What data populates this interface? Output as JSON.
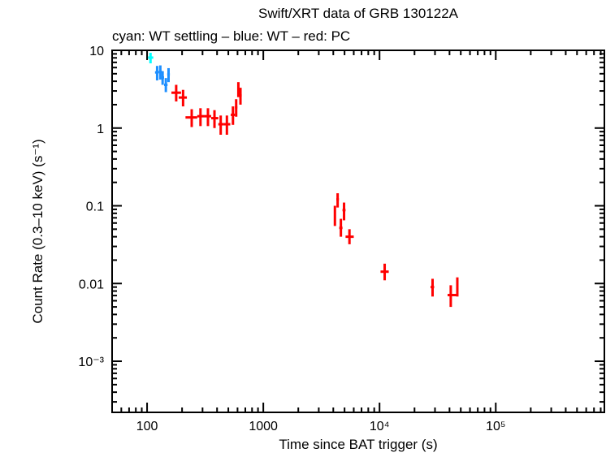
{
  "chart_data": {
    "type": "scatter",
    "title": "Swift/XRT data of GRB 130122A",
    "subtitle": "cyan: WT settling – blue: WT – red: PC",
    "xlabel": "Time since BAT trigger (s)",
    "ylabel": "Count Rate (0.3–10 keV) (s⁻¹)",
    "xscale": "log",
    "yscale": "log",
    "xlim": [
      50,
      860000
    ],
    "ylim": [
      0.00022,
      10
    ],
    "grid": false,
    "x_ticks": [
      {
        "value": 100,
        "label": "100"
      },
      {
        "value": 1000,
        "label": "1000"
      },
      {
        "value": 10000,
        "label": "10⁴"
      },
      {
        "value": 100000,
        "label": "10⁵"
      }
    ],
    "y_ticks": [
      {
        "value": 10,
        "label": "10"
      },
      {
        "value": 1,
        "label": "1"
      },
      {
        "value": 0.1,
        "label": "0.1"
      },
      {
        "value": 0.01,
        "label": "0.01"
      },
      {
        "value": 0.001,
        "label": "10⁻³"
      }
    ],
    "series": [
      {
        "name": "WT settling",
        "color": "#00ffff",
        "points": [
          {
            "t": 107,
            "tlo": 102,
            "thi": 113,
            "r": 8.06,
            "rlo": 6.8,
            "rhi": 9.3
          }
        ]
      },
      {
        "name": "WT",
        "color": "#1e8fff",
        "points": [
          {
            "t": 122,
            "tlo": 117,
            "thi": 126,
            "r": 5.2,
            "rlo": 4.1,
            "rhi": 6.3
          },
          {
            "t": 130,
            "tlo": 126,
            "thi": 134,
            "r": 5.3,
            "rlo": 4.2,
            "rhi": 6.4
          },
          {
            "t": 136,
            "tlo": 133,
            "thi": 140,
            "r": 4.46,
            "rlo": 3.6,
            "rhi": 5.4
          },
          {
            "t": 145,
            "tlo": 140,
            "thi": 150,
            "r": 3.6,
            "rlo": 2.9,
            "rhi": 4.4
          },
          {
            "t": 153,
            "tlo": 149,
            "thi": 157,
            "r": 4.9,
            "rlo": 3.9,
            "rhi": 5.9
          }
        ]
      },
      {
        "name": "PC",
        "color": "#ff0000",
        "points": [
          {
            "t": 178,
            "tlo": 162,
            "thi": 196,
            "r": 2.85,
            "rlo": 2.2,
            "rhi": 3.6
          },
          {
            "t": 204,
            "tlo": 187,
            "thi": 220,
            "r": 2.47,
            "rlo": 1.9,
            "rhi": 3.1
          },
          {
            "t": 242,
            "tlo": 214,
            "thi": 270,
            "r": 1.37,
            "rlo": 1.03,
            "rhi": 1.75
          },
          {
            "t": 288,
            "tlo": 270,
            "thi": 313,
            "r": 1.42,
            "rlo": 1.06,
            "rhi": 1.8
          },
          {
            "t": 334,
            "tlo": 313,
            "thi": 356,
            "r": 1.42,
            "rlo": 1.06,
            "rhi": 1.8
          },
          {
            "t": 380,
            "tlo": 356,
            "thi": 410,
            "r": 1.34,
            "rlo": 1.0,
            "rhi": 1.7
          },
          {
            "t": 430,
            "tlo": 410,
            "thi": 458,
            "r": 1.12,
            "rlo": 0.82,
            "rhi": 1.45
          },
          {
            "t": 486,
            "tlo": 458,
            "thi": 520,
            "r": 1.12,
            "rlo": 0.82,
            "rhi": 1.45
          },
          {
            "t": 548,
            "tlo": 525,
            "thi": 570,
            "r": 1.48,
            "rlo": 1.1,
            "rhi": 1.9
          },
          {
            "t": 584,
            "tlo": 570,
            "thi": 598,
            "r": 1.85,
            "rlo": 1.4,
            "rhi": 2.35
          },
          {
            "t": 610,
            "tlo": 600,
            "thi": 622,
            "r": 3.24,
            "rlo": 2.5,
            "rhi": 3.9
          },
          {
            "t": 636,
            "tlo": 622,
            "thi": 652,
            "r": 2.63,
            "rlo": 2.0,
            "rhi": 3.3
          },
          {
            "t": 4130,
            "tlo": 4050,
            "thi": 4200,
            "r": 0.076,
            "rlo": 0.055,
            "rhi": 0.1
          },
          {
            "t": 4360,
            "tlo": 4250,
            "thi": 4470,
            "r": 0.121,
            "rlo": 0.095,
            "rhi": 0.145
          },
          {
            "t": 4650,
            "tlo": 4500,
            "thi": 4800,
            "r": 0.052,
            "rlo": 0.04,
            "rhi": 0.068
          },
          {
            "t": 4950,
            "tlo": 4800,
            "thi": 5100,
            "r": 0.088,
            "rlo": 0.065,
            "rhi": 0.11
          },
          {
            "t": 5510,
            "tlo": 5100,
            "thi": 6000,
            "r": 0.04,
            "rlo": 0.032,
            "rhi": 0.05
          },
          {
            "t": 11070,
            "tlo": 10200,
            "thi": 12000,
            "r": 0.0142,
            "rlo": 0.011,
            "rhi": 0.018
          },
          {
            "t": 28600,
            "tlo": 27500,
            "thi": 29500,
            "r": 0.009,
            "rlo": 0.0068,
            "rhi": 0.0115
          },
          {
            "t": 41000,
            "tlo": 38500,
            "thi": 46000,
            "r": 0.0071,
            "rlo": 0.005,
            "rhi": 0.0095
          },
          {
            "t": 46700,
            "tlo": 46000,
            "thi": 47500,
            "r": 0.0092,
            "rlo": 0.0068,
            "rhi": 0.012
          }
        ]
      }
    ]
  }
}
